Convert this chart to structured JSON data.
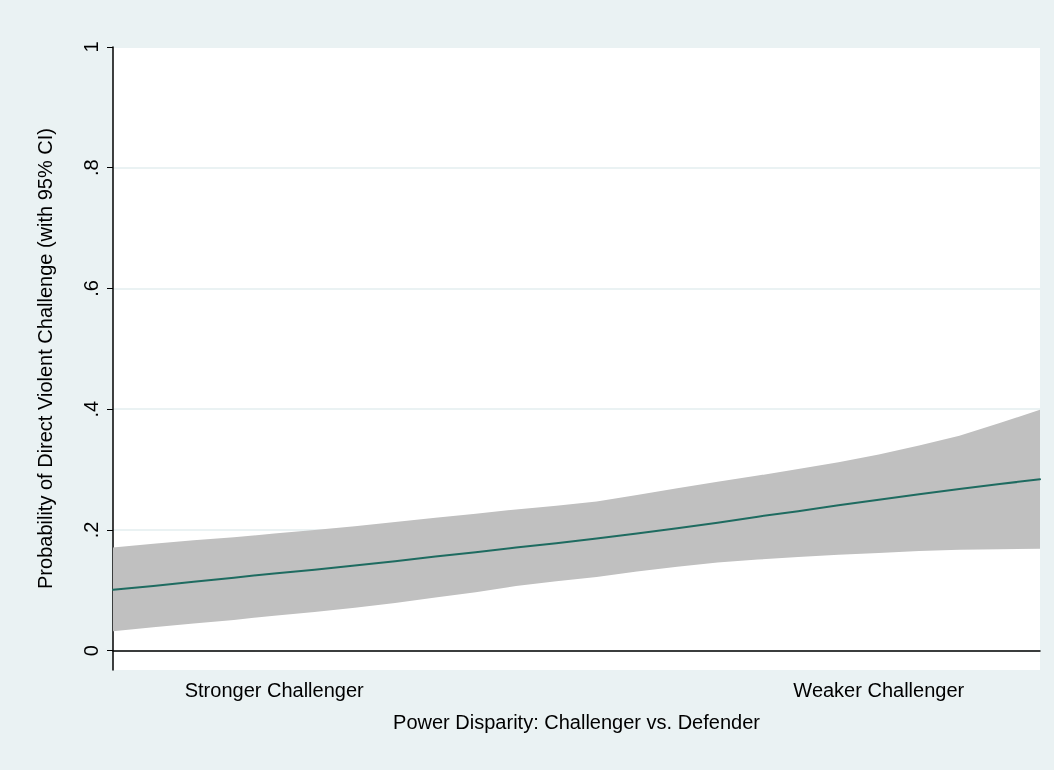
{
  "chart_data": {
    "type": "line",
    "xlabel": "Power Disparity: Challenger vs. Defender",
    "ylabel": "Probability of Direct Violent Challenge (with 95% CI)",
    "categories": [
      null,
      null,
      null,
      null,
      "Stronger Challenger",
      null,
      null,
      null,
      null,
      null,
      null,
      null,
      null,
      null,
      null,
      null,
      null,
      null,
      null,
      "Weaker Challenger",
      null,
      null,
      null,
      null
    ],
    "series": [
      {
        "color": "#1e6b60",
        "values": [
          0.101,
          0.107,
          0.114,
          0.121,
          0.128,
          0.134,
          0.141,
          0.148,
          0.156,
          0.163,
          0.171,
          0.178,
          0.186,
          0.194,
          0.203,
          0.212,
          0.222,
          0.231,
          0.241,
          0.25,
          0.259,
          0.268,
          0.276,
          0.284
        ],
        "upper": [
          0.171,
          0.177,
          0.183,
          0.188,
          0.194,
          0.2,
          0.206,
          0.213,
          0.22,
          0.227,
          0.234,
          0.24,
          0.247,
          0.258,
          0.269,
          0.28,
          0.29,
          0.301,
          0.312,
          0.325,
          0.34,
          0.356,
          0.377,
          0.399
        ],
        "lower": [
          0.032,
          0.039,
          0.045,
          0.051,
          0.058,
          0.064,
          0.071,
          0.079,
          0.088,
          0.097,
          0.107,
          0.115,
          0.122,
          0.131,
          0.139,
          0.146,
          0.151,
          0.155,
          0.159,
          0.162,
          0.165,
          0.167,
          0.168,
          0.169
        ]
      }
    ],
    "ylim": [
      -0.032,
      1
    ],
    "yticks": [
      {
        "value": 0,
        "label": "0"
      },
      {
        "value": 0.2,
        "label": ".2"
      },
      {
        "value": 0.4,
        "label": ".4"
      },
      {
        "value": 0.6,
        "label": ".6"
      },
      {
        "value": 0.8,
        "label": ".8"
      },
      {
        "value": 1,
        "label": "1"
      }
    ],
    "grid": "y",
    "marker": "none",
    "line_style": "solid"
  }
}
